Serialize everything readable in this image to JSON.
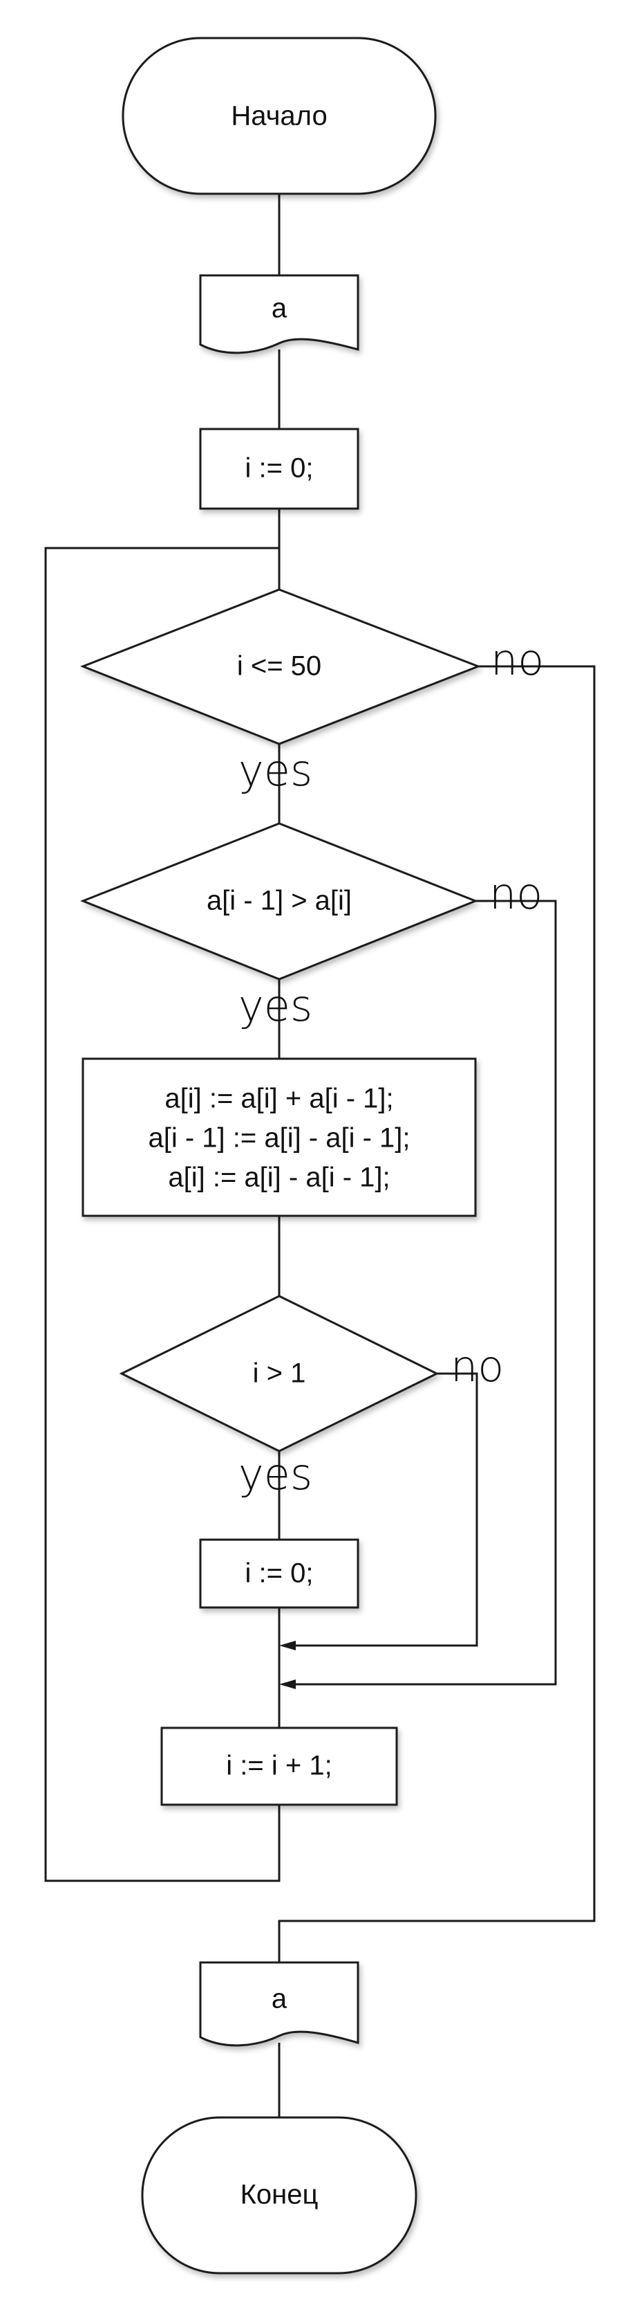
{
  "flowchart": {
    "start_label": "Начало",
    "input_label": "a",
    "init_label": "i := 0;",
    "cond_loop": "i <= 50",
    "cond_compare": "a[i - 1] > a[i]",
    "swap_lines": [
      "a[i] := a[i] + a[i - 1];",
      "a[i - 1] := a[i] - a[i - 1];",
      "a[i] := a[i] - a[i - 1];"
    ],
    "cond_index": "i > 1",
    "reset_label": "i := 0;",
    "increment_label": "i := i + 1;",
    "output_label": "a",
    "end_label": "Конец",
    "yes_label": "yes",
    "no_label": "no"
  }
}
